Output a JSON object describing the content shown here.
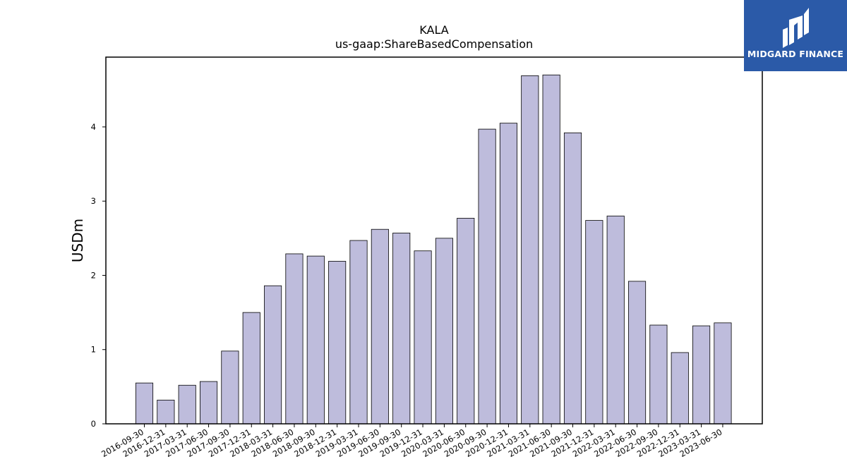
{
  "logo": {
    "text": "MIDGARD FINANCE",
    "brand_color": "#2b5aa8"
  },
  "chart_data": {
    "type": "bar",
    "title": "KALA",
    "subtitle": "us-gaap:ShareBasedCompensation",
    "xlabel": "",
    "ylabel": "USDm",
    "ylim": [
      0,
      4.94
    ],
    "yticks": [
      0,
      1,
      2,
      3,
      4
    ],
    "grid": false,
    "bar_color": "#bebcdc",
    "bar_edge_color": "#000000",
    "categories": [
      "2016-09-30",
      "2016-12-31",
      "2017-03-31",
      "2017-06-30",
      "2017-09-30",
      "2017-12-31",
      "2018-03-31",
      "2018-06-30",
      "2018-09-30",
      "2018-12-31",
      "2019-03-31",
      "2019-06-30",
      "2019-09-30",
      "2019-12-31",
      "2020-03-31",
      "2020-06-30",
      "2020-09-30",
      "2020-12-31",
      "2021-03-31",
      "2021-06-30",
      "2021-09-30",
      "2021-12-31",
      "2022-03-31",
      "2022-06-30",
      "2022-09-30",
      "2022-12-31",
      "2023-03-31",
      "2023-06-30"
    ],
    "values": [
      0.55,
      0.32,
      0.52,
      0.57,
      0.98,
      1.5,
      1.86,
      2.29,
      2.26,
      2.19,
      2.47,
      2.62,
      2.57,
      2.33,
      2.5,
      2.77,
      3.97,
      4.05,
      4.69,
      4.7,
      3.92,
      2.74,
      2.8,
      1.92,
      1.33,
      0.96,
      1.32,
      1.36
    ]
  }
}
